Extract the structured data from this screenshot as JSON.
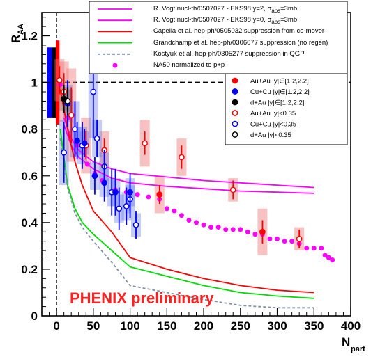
{
  "chart_data": {
    "type": "scatter",
    "title": "",
    "xlabel": {
      "main": "N",
      "sub": "part"
    },
    "ylabel": {
      "main": "R",
      "sub": "AA"
    },
    "xlim": [
      -20,
      400
    ],
    "ylim": [
      0,
      1.3
    ],
    "x_ticks": [
      "0",
      "50",
      "100",
      "150",
      "200",
      "250",
      "300",
      "350",
      "400"
    ],
    "y_ticks": [
      "0",
      "0.2",
      "0.4",
      "0.6",
      "0.8",
      "1",
      "1.2"
    ],
    "watermark": {
      "text": "PHENIX preliminary",
      "color": "#ff2020"
    },
    "legend_top": [
      {
        "name_html": "R. Vogt nucl-th/0507027 - EKS98 y=2, σ<sub>abs</sub>=3mb",
        "name": "R. Vogt nucl-th/0507027 - EKS98 y=2, σabs=3mb",
        "color": "#ff00ff",
        "style": "solid"
      },
      {
        "name_html": "R. Vogt nucl-th/0507027 - EKS98 y=0, σ<sub>abs</sub>=3mb",
        "name": "R. Vogt nucl-th/0507027 - EKS98 y=0, σabs=3mb",
        "color": "#ff00ff",
        "style": "solid"
      },
      {
        "name_html": "Capella et al. hep-ph/0505032 suppression from co-mover",
        "name": "Capella et al. hep-ph/0505032 suppression from co-mover",
        "color": "#ff0000",
        "style": "solid"
      },
      {
        "name_html": "Grandchamp et al. hep-ph/0306077 suppression (no regen)",
        "name": "Grandchamp et al. hep-ph/0306077 suppression (no regen)",
        "color": "#00dd00",
        "style": "solid"
      },
      {
        "name_html": "Kostyuk et al. hep-ph/0305277 suppression in QGP",
        "name": "Kostyuk et al. hep-ph/0305277 suppression in QGP",
        "color": "#8090a8",
        "style": "dashed"
      },
      {
        "name_html": "NA50 normalized to p+p",
        "name": "NA50 normalized to p+p",
        "color": "#ff00ff",
        "style": "dot"
      }
    ],
    "legend_data": [
      {
        "name": "Au+Au |y|∈[1.2,2.2]",
        "color": "#ff0000",
        "filled": true
      },
      {
        "name": "Cu+Cu |y|∈[1.2,2.2]",
        "color": "#0000ff",
        "filled": true
      },
      {
        "name": "d+Au |y|∈[1.2,2.2]",
        "color": "#000000",
        "filled": true
      },
      {
        "name": "Au+Au |y|<0.35",
        "color": "#ff0000",
        "filled": false
      },
      {
        "name": "Cu+Cu |y|<0.35",
        "color": "#0000ff",
        "filled": false
      },
      {
        "name": "d+Au |y|<0.35",
        "color": "#000000",
        "filled": false
      }
    ],
    "global_sys_bars": [
      {
        "x0": -13,
        "x1": -6,
        "ylo": 0.85,
        "yhi": 1.15,
        "color": "#0000ff"
      },
      {
        "x0": -6,
        "x1": -1,
        "ylo": 0.85,
        "yhi": 1.15,
        "color": "#000000"
      },
      {
        "x0": -1,
        "x1": 4,
        "ylo": 0.82,
        "yhi": 1.18,
        "color": "#ff0000"
      }
    ],
    "theory_curves": [
      {
        "name": "Vogt y=2",
        "color": "#ff00ff",
        "dash": "",
        "x": [
          10,
          20,
          30,
          50,
          75,
          100,
          150,
          200,
          250,
          300,
          350
        ],
        "y": [
          0.85,
          0.76,
          0.71,
          0.66,
          0.63,
          0.61,
          0.595,
          0.58,
          0.57,
          0.56,
          0.55
        ]
      },
      {
        "name": "Vogt y=0",
        "color": "#ff00ff",
        "dash": "",
        "x": [
          10,
          20,
          30,
          50,
          75,
          100,
          150,
          200,
          250,
          300,
          350
        ],
        "y": [
          0.82,
          0.73,
          0.68,
          0.63,
          0.59,
          0.57,
          0.555,
          0.545,
          0.535,
          0.53,
          0.525
        ]
      },
      {
        "name": "Capella",
        "color": "#ff0000",
        "dash": "",
        "x": [
          5,
          15,
          25,
          35,
          50,
          75,
          100,
          150,
          200,
          250,
          300,
          350
        ],
        "y": [
          0.97,
          0.8,
          0.66,
          0.56,
          0.45,
          0.36,
          0.25,
          0.2,
          0.16,
          0.13,
          0.11,
          0.1
        ]
      },
      {
        "name": "Grandchamp",
        "color": "#00dd00",
        "dash": "",
        "x": [
          5,
          15,
          25,
          35,
          50,
          75,
          100,
          150,
          200,
          250,
          300,
          350
        ],
        "y": [
          0.8,
          0.56,
          0.46,
          0.4,
          0.35,
          0.28,
          0.21,
          0.17,
          0.13,
          0.1,
          0.085,
          0.075
        ]
      },
      {
        "name": "Kostyuk",
        "color": "#8090a8",
        "dash": "4,3",
        "x": [
          5,
          15,
          25,
          35,
          50,
          75,
          100,
          150,
          200,
          250,
          300,
          350
        ],
        "y": [
          0.76,
          0.55,
          0.44,
          0.38,
          0.32,
          0.23,
          0.13,
          0.1,
          0.07,
          0.045,
          0.035,
          0.035
        ]
      }
    ],
    "na50": {
      "color": "#ff00ff",
      "x": [
        5,
        16,
        28,
        42,
        52,
        62,
        80,
        95,
        110,
        125,
        140,
        150,
        160,
        170,
        180,
        190,
        200,
        210,
        220,
        230,
        240,
        250,
        260,
        270,
        280,
        290,
        300,
        310,
        320,
        330,
        340,
        350,
        360,
        365,
        370,
        375
      ],
      "y": [
        0.99,
        0.85,
        0.73,
        0.65,
        0.61,
        0.58,
        0.54,
        0.53,
        0.52,
        0.51,
        0.5,
        0.46,
        0.45,
        0.43,
        0.41,
        0.4,
        0.39,
        0.38,
        0.38,
        0.37,
        0.37,
        0.37,
        0.36,
        0.35,
        0.35,
        0.33,
        0.33,
        0.32,
        0.32,
        0.31,
        0.29,
        0.29,
        0.29,
        0.26,
        0.25,
        0.24
      ]
    },
    "data_points": [
      {
        "series": "Au+Au |y|<0.35",
        "color": "#ff0000",
        "filled": false,
        "x": [
          4,
          10,
          20,
          40,
          65,
          120,
          170,
          240,
          330
        ],
        "y": [
          1.01,
          0.96,
          0.86,
          0.73,
          0.71,
          0.74,
          0.68,
          0.54,
          0.33
        ],
        "err_lo": [
          0.06,
          0.08,
          0.12,
          0.06,
          0.05,
          0.05,
          0.05,
          0.04,
          0.04
        ],
        "err_hi": [
          0.06,
          0.08,
          0.12,
          0.06,
          0.05,
          0.05,
          0.05,
          0.04,
          0.04
        ],
        "box_lo": [
          0.09,
          0.13,
          0.2,
          0.12,
          0.08,
          0.1,
          0.08,
          0.05,
          0.05
        ],
        "box_hi": [
          0.09,
          0.13,
          0.2,
          0.12,
          0.08,
          0.1,
          0.08,
          0.05,
          0.05
        ]
      },
      {
        "series": "Au+Au |y|∈[1.2,2.2]",
        "color": "#ff0000",
        "filled": true,
        "x": [
          140,
          280
        ],
        "y": [
          0.52,
          0.36
        ],
        "err_lo": [
          0.04,
          0.05
        ],
        "err_hi": [
          0.04,
          0.05
        ],
        "box_lo": [
          0.08,
          0.1
        ],
        "box_hi": [
          0.08,
          0.1
        ]
      },
      {
        "series": "Cu+Cu |y|<0.35",
        "color": "#0000ff",
        "filled": false,
        "x": [
          10,
          25,
          35,
          50,
          55,
          65,
          75,
          85,
          95,
          100,
          108
        ],
        "y": [
          0.7,
          0.8,
          0.73,
          0.96,
          0.76,
          0.64,
          0.53,
          0.46,
          0.47,
          0.5,
          0.39
        ],
        "err_lo": [
          0.13,
          0.12,
          0.1,
          0.2,
          0.08,
          0.07,
          0.1,
          0.09,
          0.08,
          0.08,
          0.06
        ],
        "err_hi": [
          0.13,
          0.12,
          0.1,
          0.2,
          0.08,
          0.07,
          0.1,
          0.09,
          0.08,
          0.08,
          0.06
        ],
        "box_lo": [
          0.14,
          0.12,
          0.08,
          0.2,
          0.08,
          0.06,
          0.06,
          0.06,
          0.06,
          0.06,
          0.05
        ],
        "box_hi": [
          0.14,
          0.12,
          0.08,
          0.2,
          0.08,
          0.06,
          0.06,
          0.06,
          0.06,
          0.06,
          0.05
        ]
      },
      {
        "series": "Cu+Cu |y|∈[1.2,2.2]",
        "color": "#0000ff",
        "filled": true,
        "x": [
          15,
          28,
          38,
          52,
          65,
          80,
          100
        ],
        "y": [
          0.91,
          0.75,
          0.74,
          0.6,
          0.57,
          0.53,
          0.53
        ],
        "err_lo": [
          0.1,
          0.08,
          0.06,
          0.08,
          0.08,
          0.1,
          0.08
        ],
        "err_hi": [
          0.1,
          0.08,
          0.06,
          0.08,
          0.08,
          0.1,
          0.08
        ],
        "box_lo": [
          0.08,
          0.06,
          0.05,
          0.06,
          0.06,
          0.06,
          0.06
        ],
        "box_hi": [
          0.08,
          0.06,
          0.05,
          0.06,
          0.06,
          0.06,
          0.06
        ]
      },
      {
        "series": "d+Au |y|<0.35",
        "color": "#000000",
        "filled": false,
        "x": [
          15
        ],
        "y": [
          0.92
        ],
        "err_lo": [
          0.06
        ],
        "err_hi": [
          0.06
        ],
        "box_lo": [
          0.05
        ],
        "box_hi": [
          0.05
        ]
      },
      {
        "series": "d+Au |y|∈[1.2,2.2]",
        "color": "#000000",
        "filled": true,
        "x": [
          10
        ],
        "y": [
          0.93
        ],
        "err_lo": [
          0.06
        ],
        "err_hi": [
          0.06
        ],
        "box_lo": [
          0.05
        ],
        "box_hi": [
          0.05
        ]
      }
    ]
  }
}
